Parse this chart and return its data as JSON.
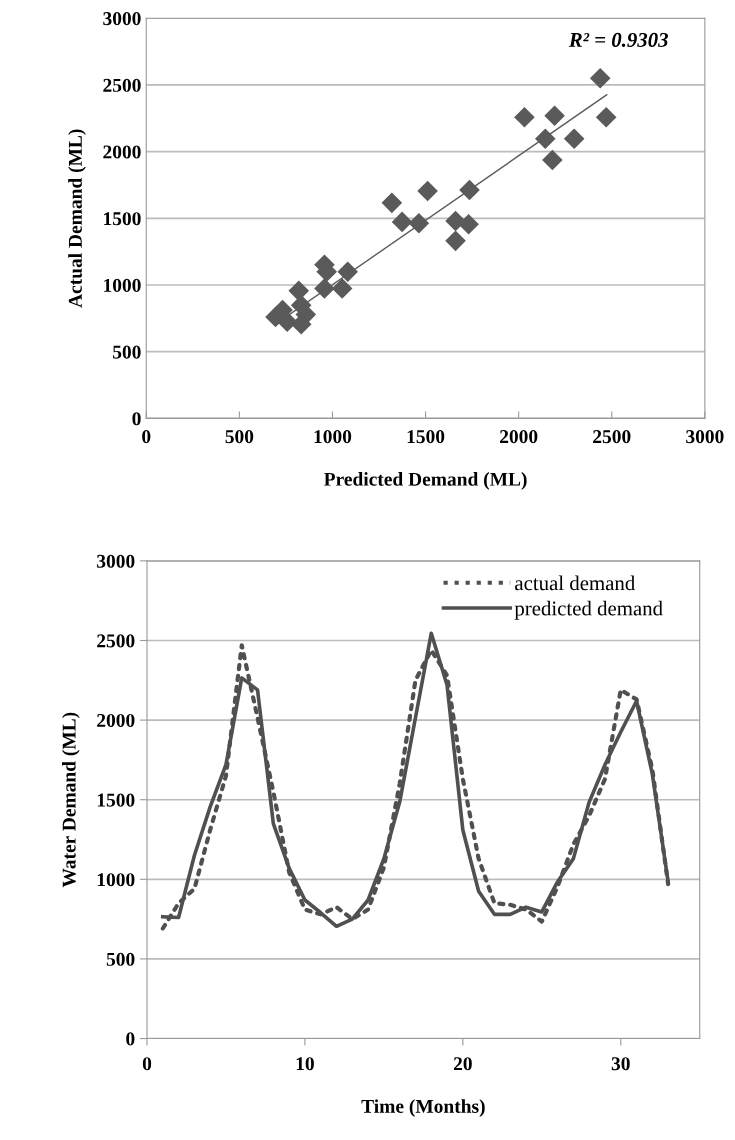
{
  "chart_data": [
    {
      "type": "scatter",
      "xlabel": "Predicted Demand (ML)",
      "ylabel": "Actual Demand (ML)",
      "annotations": [
        "R² = 0.9303"
      ],
      "xlim": [
        0,
        3000
      ],
      "ylim": [
        0,
        3000
      ],
      "xticks": [
        0,
        500,
        1000,
        1500,
        2000,
        2500,
        3000
      ],
      "yticks": [
        0,
        500,
        1000,
        1500,
        2000,
        2500,
        3000
      ],
      "grid": "y",
      "marker": "diamond",
      "series": [
        {
          "color": "#5a5a5a",
          "x": [
            694,
            732,
            757,
            819,
            832,
            857,
            832,
            957,
            969,
            957,
            1052,
            1082,
            1319,
            1374,
            1464,
            1511,
            1661,
            1661,
            1731,
            1736,
            2031,
            2143,
            2193,
            2181,
            2298,
            2438,
            2470
          ],
          "values": [
            760,
            813,
            724,
            956,
            849,
            778,
            706,
            1152,
            1099,
            974,
            974,
            1099,
            1616,
            1473,
            1463,
            1705,
            1480,
            1331,
            1455,
            1712,
            2258,
            2097,
            2269,
            1937,
            2097,
            2550,
            2258
          ]
        },
        {
          "type": "line",
          "color": "#5a5a5a",
          "marker": "none",
          "line_style": "solid",
          "x": [
            724,
            2473
          ],
          "values": [
            735,
            2426
          ]
        }
      ]
    },
    {
      "type": "line",
      "xlabel": "Time (Months)",
      "ylabel": "Water Demand (ML)",
      "xlim": [
        0,
        35
      ],
      "ylim": [
        0,
        3000
      ],
      "xticks": [
        0,
        10,
        20,
        30
      ],
      "yticks": [
        0,
        500,
        1000,
        1500,
        2000,
        2500,
        3000
      ],
      "grid": "y",
      "legend": "top right",
      "marker": "none",
      "x": [
        1,
        2,
        3,
        4,
        5,
        6,
        7,
        8,
        9,
        10,
        11,
        12,
        13,
        14,
        15,
        16,
        17,
        18,
        19,
        20,
        21,
        22,
        23,
        24,
        25,
        26,
        27,
        28,
        29,
        30,
        31,
        32,
        33
      ],
      "series": [
        {
          "name": "actual demand",
          "color": "#505050",
          "line_style": "dotted",
          "values": [
            691,
            850,
            940,
            1310,
            1650,
            2470,
            2015,
            1550,
            1045,
            810,
            780,
            825,
            750,
            810,
            1075,
            1600,
            2250,
            2440,
            2280,
            1630,
            1130,
            850,
            840,
            810,
            735,
            955,
            1220,
            1400,
            1630,
            2190,
            2130,
            1690,
            970
          ]
        },
        {
          "name": "predicted demand",
          "color": "#505050",
          "line_style": "solid",
          "values": [
            765,
            760,
            1150,
            1455,
            1720,
            2265,
            2190,
            1350,
            1070,
            870,
            790,
            705,
            750,
            870,
            1130,
            1485,
            2015,
            2545,
            2220,
            1310,
            925,
            780,
            780,
            825,
            795,
            985,
            1130,
            1485,
            1720,
            1925,
            2120,
            1660,
            985
          ]
        }
      ]
    }
  ]
}
